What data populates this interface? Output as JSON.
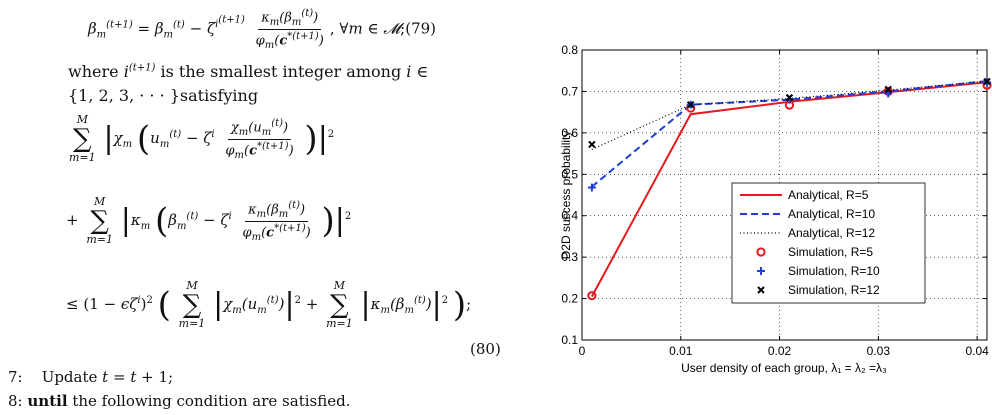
{
  "paper": {
    "eq79_number": "(79)",
    "where_line_1": "where",
    "where_line_1b": "is the smallest integer among",
    "where_line_2": "{1, 2, 3, · · · }satisfying",
    "eq80_number": "(80)",
    "step7_num": "7:",
    "step7_text": "Update",
    "step8_num": "8:",
    "step8_kw": "until",
    "step8_text": "the following condition are satisfied."
  },
  "chart_data": {
    "type": "line",
    "xlabel": "User density of each group, λ₁ = λ₂ =λ₃",
    "ylabel": "D2D success probability",
    "xlim": [
      0,
      0.041
    ],
    "ylim": [
      0.1,
      0.8
    ],
    "xticks": [
      "0",
      "0.01",
      "0.02",
      "0.03",
      "0.04"
    ],
    "xtick_values": [
      0,
      0.01,
      0.02,
      0.03,
      0.04
    ],
    "yticks": [
      "0.1",
      "0.2",
      "0.3",
      "0.4",
      "0.5",
      "0.6",
      "0.7",
      "0.8"
    ],
    "ytick_values": [
      0.1,
      0.2,
      0.3,
      0.4,
      0.5,
      0.6,
      0.7,
      0.8
    ],
    "grid": true,
    "legend_position": "lower-right",
    "x": [
      0.001,
      0.011,
      0.021,
      0.031,
      0.041
    ],
    "series": [
      {
        "name": "Analytical, R=5",
        "style": "solid",
        "color": "#e41a1c",
        "values": [
          0.205,
          0.645,
          0.675,
          0.698,
          0.722
        ]
      },
      {
        "name": "Analytical, R=10",
        "style": "dashed",
        "color": "#1f3fd6",
        "values": [
          0.47,
          0.668,
          0.68,
          0.7,
          0.725
        ]
      },
      {
        "name": "Analytical, R=12",
        "style": "dotted",
        "color": "#000000",
        "values": [
          0.56,
          0.668,
          0.683,
          0.703,
          0.725
        ]
      },
      {
        "name": "Simulation, R=5",
        "style": "circle",
        "color": "#e41a1c",
        "values": [
          0.207,
          0.66,
          0.667,
          0.7,
          0.715
        ]
      },
      {
        "name": "Simulation, R=10",
        "style": "plus",
        "color": "#1f3fd6",
        "values": [
          0.468,
          0.668,
          0.68,
          0.695,
          0.722
        ]
      },
      {
        "name": "Simulation, R=12",
        "style": "x",
        "color": "#000000",
        "values": [
          0.572,
          0.668,
          0.685,
          0.705,
          0.724
        ]
      }
    ]
  }
}
